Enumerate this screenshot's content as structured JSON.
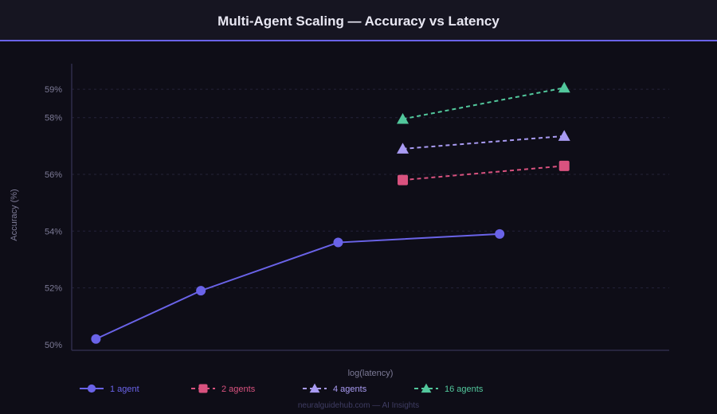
{
  "header": {
    "title": "Multi-Agent Scaling — Accuracy vs Latency"
  },
  "footer": {
    "credit": "neuralguidehub.com — AI Insights"
  },
  "colors": {
    "accent": "#6a63e8",
    "background": "#0e0d17",
    "grid": "#24233a"
  },
  "chart_data": {
    "type": "line",
    "title": "Multi-Agent Scaling — Accuracy vs Latency",
    "xlabel": "log(latency)",
    "ylabel": "Accuracy (%)",
    "ylim": [
      49.8,
      59.9
    ],
    "xlim": [
      0.5,
      4.2
    ],
    "y_ticks": [
      50,
      52,
      54,
      56,
      58,
      59
    ],
    "y_tick_labels": [
      "50%",
      "52%",
      "54%",
      "56%",
      "58%",
      "59%"
    ],
    "grid": true,
    "legend_position": "bottom-left",
    "series": [
      {
        "name": "1 agent",
        "color": "#6a63e8",
        "marker": "circle",
        "dash": "solid",
        "x": [
          0.65,
          1.3,
          2.15,
          3.15
        ],
        "y": [
          50.2,
          51.9,
          53.6,
          53.9
        ]
      },
      {
        "name": "2 agents",
        "color": "#d9527f",
        "marker": "square",
        "dash": "dashed",
        "x": [
          2.55,
          3.55
        ],
        "y": [
          55.8,
          56.3
        ]
      },
      {
        "name": "4 agents",
        "color": "#a99bf3",
        "marker": "triangle",
        "dash": "dashed",
        "x": [
          2.55,
          3.55
        ],
        "y": [
          56.9,
          57.35
        ]
      },
      {
        "name": "16 agents",
        "color": "#52c79c",
        "marker": "triangle",
        "dash": "dashed",
        "x": [
          2.55,
          3.55
        ],
        "y": [
          57.95,
          59.05
        ]
      }
    ]
  }
}
